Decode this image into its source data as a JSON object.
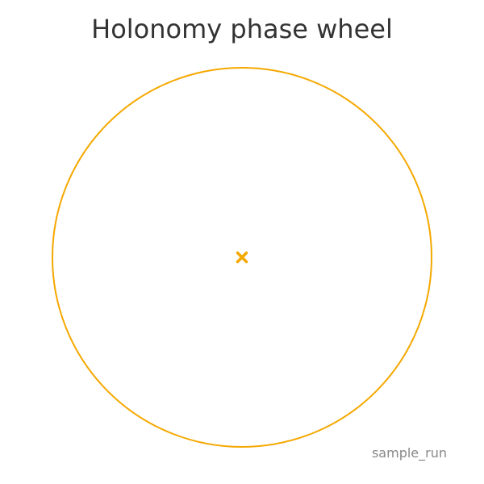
{
  "title": "Holonomy phase wheel",
  "footer_label": "sample_run",
  "colors": {
    "wheel_stroke": "#f5a800",
    "center_marker": "#f5a800",
    "title_text": "#333333",
    "footer_text": "#888888"
  },
  "icons": {
    "center_marker": "x-mark-icon"
  }
}
